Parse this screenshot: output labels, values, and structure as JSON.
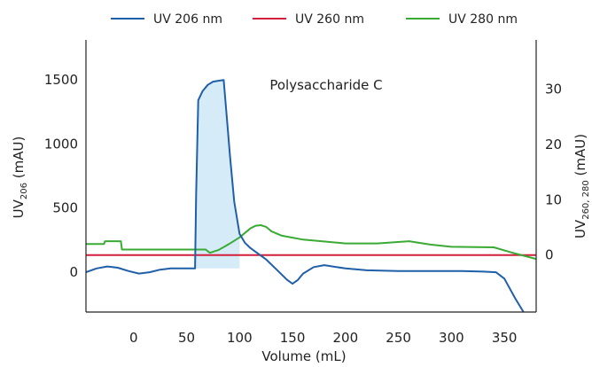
{
  "chart_data": {
    "type": "line",
    "annotation": "Polysaccharide C",
    "x_axis": {
      "label": "Volume (mL)",
      "range": [
        -45,
        380
      ],
      "ticks": [
        0,
        50,
        100,
        150,
        200,
        250,
        300,
        350
      ]
    },
    "y_axis_left": {
      "label_main": "UV",
      "label_sub": "206",
      "label_rest": " (mAU)",
      "range": [
        -310,
        1810
      ],
      "ticks": [
        0,
        500,
        1000,
        1500
      ]
    },
    "y_axis_right": {
      "label_main": "UV",
      "label_sub": "260, 280",
      "label_rest": " (mAU)",
      "range": [
        -10.3,
        38.9
      ],
      "ticks": [
        0,
        10,
        20,
        30
      ]
    },
    "series": [
      {
        "name": "UV 206 nm",
        "axis": "left",
        "color": "#1f5fa8",
        "fill": "#d6ebf8",
        "fill_range": [
          58,
          100
        ],
        "x": [
          -45,
          -35,
          -25,
          -15,
          -5,
          5,
          15,
          25,
          35,
          45,
          50,
          55,
          58,
          59,
          61,
          65,
          70,
          75,
          80,
          85,
          88,
          91,
          95,
          100,
          105,
          110,
          115,
          125,
          135,
          145,
          150,
          155,
          160,
          170,
          180,
          200,
          220,
          250,
          280,
          310,
          330,
          342,
          350,
          360,
          368
        ],
        "y": [
          0,
          30,
          45,
          35,
          10,
          -10,
          0,
          20,
          30,
          30,
          30,
          30,
          30,
          600,
          1340,
          1410,
          1460,
          1485,
          1492,
          1497,
          1200,
          900,
          550,
          300,
          230,
          190,
          160,
          100,
          20,
          -60,
          -90,
          -60,
          -10,
          40,
          55,
          30,
          15,
          10,
          10,
          10,
          5,
          0,
          -50,
          -200,
          -310
        ]
      },
      {
        "name": "UV 260 nm",
        "axis": "right",
        "color": "#d21f3c",
        "x": [
          -45,
          380
        ],
        "y": [
          0,
          0
        ]
      },
      {
        "name": "UV 280 nm",
        "axis": "right",
        "color": "#3aaa35",
        "x": [
          -45,
          -28,
          -27,
          -12,
          -11,
          58,
          68,
          72,
          80,
          90,
          100,
          110,
          115,
          120,
          125,
          130,
          140,
          160,
          200,
          230,
          260,
          280,
          300,
          340,
          360,
          380
        ],
        "y": [
          2,
          2,
          2.5,
          2.5,
          1,
          1,
          1,
          0.4,
          0.9,
          2,
          3.2,
          4.8,
          5.3,
          5.4,
          5.1,
          4.3,
          3.5,
          2.8,
          2.1,
          2.1,
          2.5,
          1.9,
          1.5,
          1.4,
          0.3,
          -0.7
        ]
      }
    ]
  }
}
